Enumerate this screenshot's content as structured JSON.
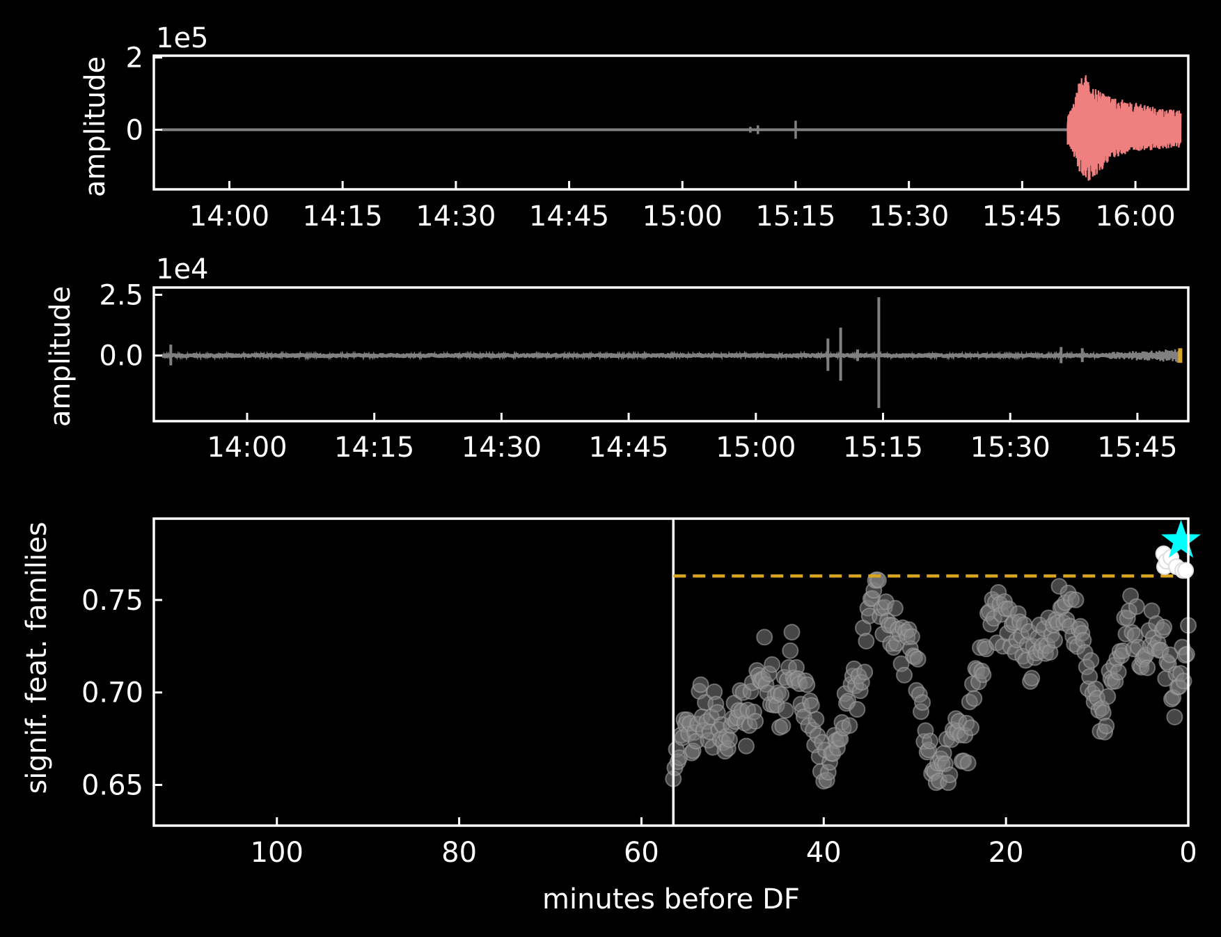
{
  "colors": {
    "background": "#000000",
    "axes": "#ffffff",
    "signal": "#808080",
    "df_signal": "#f08080",
    "threshold": "#daa520",
    "star": "#00ffff",
    "alarm_points": "#ffffff"
  },
  "chart_data": [
    {
      "type": "line",
      "panel": "top",
      "ylabel": "amplitude",
      "offset_text": "1e5",
      "ytick_labels": [
        "2",
        "0"
      ],
      "xtick_labels": [
        "14:00",
        "14:15",
        "14:30",
        "14:45",
        "15:00",
        "15:15",
        "15:30",
        "15:45",
        "16:00"
      ],
      "xlim": [
        "13:50",
        "16:07"
      ],
      "ylim": [
        -1.65,
        2.05
      ],
      "series": [
        {
          "color": "#808080",
          "x_range": [
            "13:51",
            "15:51"
          ],
          "baseline": 0,
          "spikes": [
            {
              "t": "15:09",
              "amp": 0.08
            },
            {
              "t": "15:10",
              "amp": 0.12
            },
            {
              "t": "15:15",
              "amp": 0.25
            }
          ]
        },
        {
          "color": "#f08080",
          "x_range": [
            "15:51",
            "16:06"
          ],
          "envelope": [
            [
              15.83,
              0.1
            ],
            [
              15.86,
              0.6
            ],
            [
              15.875,
              1.3
            ],
            [
              15.885,
              1.7
            ],
            [
              15.9,
              1.2
            ],
            [
              15.95,
              0.9
            ],
            [
              16.0,
              0.75
            ],
            [
              16.05,
              0.6
            ],
            [
              16.1,
              0.55
            ]
          ],
          "lower_envelope": [
            [
              15.83,
              -0.1
            ],
            [
              15.86,
              -0.6
            ],
            [
              15.875,
              -1.2
            ],
            [
              15.9,
              -1.45
            ],
            [
              15.95,
              -0.8
            ],
            [
              16.0,
              -0.6
            ],
            [
              16.05,
              -0.55
            ],
            [
              16.1,
              -0.5
            ]
          ]
        }
      ]
    },
    {
      "type": "line",
      "panel": "middle",
      "ylabel": "amplitude",
      "offset_text": "1e4",
      "ytick_labels": [
        "2.5",
        "0.0"
      ],
      "xtick_labels": [
        "14:00",
        "14:15",
        "14:30",
        "14:45",
        "15:00",
        "15:15",
        "15:30",
        "15:45"
      ],
      "xlim": [
        "13:49",
        "15:51"
      ],
      "ylim": [
        -2.7,
        2.8
      ],
      "series": [
        {
          "color": "#808080",
          "x_range": [
            "13:50",
            "15:50"
          ],
          "baseline": 0,
          "noise_amp": 0.1,
          "spikes": [
            {
              "t": "13:51",
              "amp": 0.45
            },
            {
              "t": "15:08.5",
              "amp": 0.7
            },
            {
              "t": "15:10",
              "amp": 1.15
            },
            {
              "t": "15:12",
              "amp": 0.25
            },
            {
              "t": "15:14.5",
              "amp": 2.4
            },
            {
              "t": "15:36",
              "amp": 0.35
            },
            {
              "t": "15:38.5",
              "amp": 0.3
            }
          ]
        },
        {
          "color": "#daa520",
          "x_range": [
            "15:49.8",
            "15:50.3"
          ],
          "amp": 0.3
        }
      ]
    },
    {
      "type": "scatter",
      "panel": "bottom",
      "xlabel": "minutes before DF",
      "ylabel": "signif. feat. families",
      "xtick_labels": [
        "100",
        "80",
        "60",
        "40",
        "20",
        "0"
      ],
      "ytick_labels": [
        "0.75",
        "0.70",
        "0.65"
      ],
      "xlim": [
        113.5,
        0
      ],
      "ylim": [
        0.628,
        0.794
      ],
      "window_start_line": 56.5,
      "threshold": 0.763,
      "threshold_x_range": [
        56.5,
        0
      ],
      "anchors": [
        [
          56.5,
          0.665
        ],
        [
          55.5,
          0.685
        ],
        [
          54.5,
          0.672
        ],
        [
          53.5,
          0.69
        ],
        [
          52.5,
          0.678
        ],
        [
          51.5,
          0.693
        ],
        [
          50.5,
          0.668
        ],
        [
          49.5,
          0.7
        ],
        [
          48.5,
          0.685
        ],
        [
          47.5,
          0.698
        ],
        [
          46.5,
          0.715
        ],
        [
          45.5,
          0.705
        ],
        [
          44.5,
          0.688
        ],
        [
          43.5,
          0.72
        ],
        [
          42.5,
          0.7
        ],
        [
          41.5,
          0.69
        ],
        [
          40.5,
          0.67
        ],
        [
          39.5,
          0.652
        ],
        [
          38.5,
          0.67
        ],
        [
          37.5,
          0.688
        ],
        [
          36.5,
          0.7
        ],
        [
          35.5,
          0.725
        ],
        [
          34.5,
          0.75
        ],
        [
          33.5,
          0.745
        ],
        [
          32.5,
          0.735
        ],
        [
          31.5,
          0.725
        ],
        [
          30.5,
          0.72
        ],
        [
          29.5,
          0.7
        ],
        [
          28.5,
          0.672
        ],
        [
          27.5,
          0.65
        ],
        [
          26.5,
          0.66
        ],
        [
          25.5,
          0.678
        ],
        [
          24.5,
          0.665
        ],
        [
          23.5,
          0.7
        ],
        [
          22.5,
          0.72
        ],
        [
          21.5,
          0.738
        ],
        [
          20.5,
          0.74
        ],
        [
          19.5,
          0.735
        ],
        [
          18.5,
          0.73
        ],
        [
          17.5,
          0.72
        ],
        [
          16.5,
          0.725
        ],
        [
          15.5,
          0.735
        ],
        [
          14.5,
          0.74
        ],
        [
          13.5,
          0.748
        ],
        [
          12.5,
          0.74
        ],
        [
          11.5,
          0.728
        ],
        [
          10.5,
          0.7
        ],
        [
          9.5,
          0.69
        ],
        [
          8.5,
          0.7
        ],
        [
          7.5,
          0.72
        ],
        [
          6.5,
          0.74
        ],
        [
          5.5,
          0.73
        ],
        [
          4.5,
          0.72
        ],
        [
          3.5,
          0.74
        ],
        [
          2.5,
          0.72
        ],
        [
          1.5,
          0.7
        ],
        [
          0.5,
          0.72
        ],
        [
          0,
          0.74
        ]
      ],
      "alarm_points": [
        [
          2.7,
          0.775
        ],
        [
          2.6,
          0.768
        ],
        [
          2.4,
          0.771
        ],
        [
          1.9,
          0.773
        ],
        [
          1.3,
          0.768
        ],
        [
          0.6,
          0.766
        ],
        [
          0.3,
          0.766
        ]
      ],
      "star_point": [
        0.8,
        0.782
      ]
    }
  ]
}
